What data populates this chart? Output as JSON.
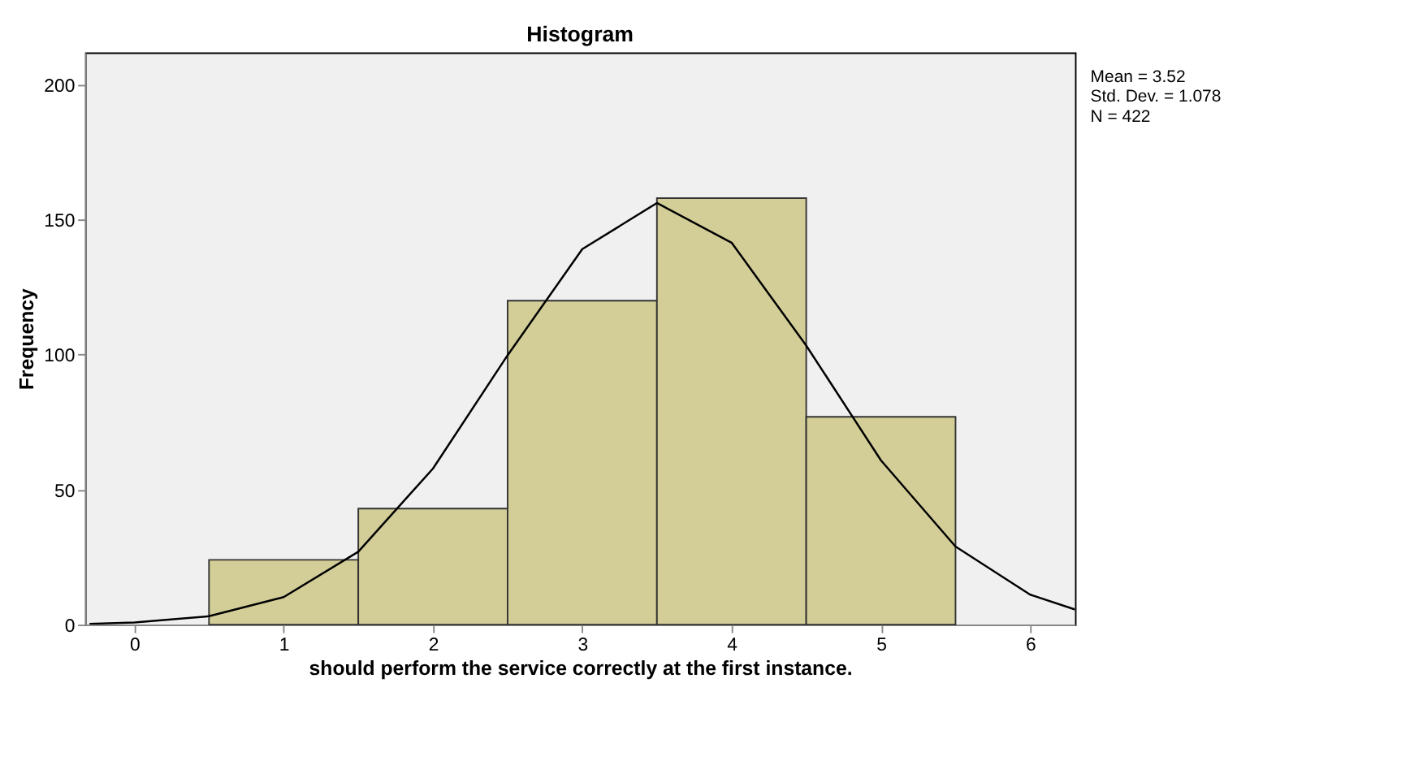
{
  "chart_data": {
    "type": "histogram",
    "title": "Histogram",
    "xlabel": "should perform the service correctly at the first instance.",
    "ylabel": "Frequency",
    "bins": [
      0.5,
      1.5,
      2.5,
      3.5,
      4.5,
      5.5
    ],
    "values": [
      24,
      43,
      120,
      158,
      77
    ],
    "color": "#d3ce97",
    "series": [
      {
        "type": "line",
        "color": "#000000",
        "x": [
          -0.3,
          0,
          0.5,
          1,
          1.5,
          2,
          2.5,
          3,
          3.5,
          4,
          4.5,
          5,
          5.5,
          6,
          6.3
        ],
        "values": [
          0.3,
          0.8,
          3.1,
          10.2,
          27.0,
          57.8,
          99.8,
          139.1,
          156.2,
          141.5,
          103.4,
          60.9,
          28.9,
          11.1,
          5.6
        ]
      }
    ],
    "xlim": [
      -0.33,
      6.3
    ],
    "xticks": [
      0,
      1,
      2,
      3,
      4,
      5,
      6
    ],
    "ylim": [
      0,
      212
    ],
    "yticks": [
      0,
      50,
      100,
      150,
      200
    ],
    "grid": false,
    "annotations": [
      "Mean = 3.52",
      "Std. Dev. = 1.078",
      "N = 422"
    ]
  }
}
